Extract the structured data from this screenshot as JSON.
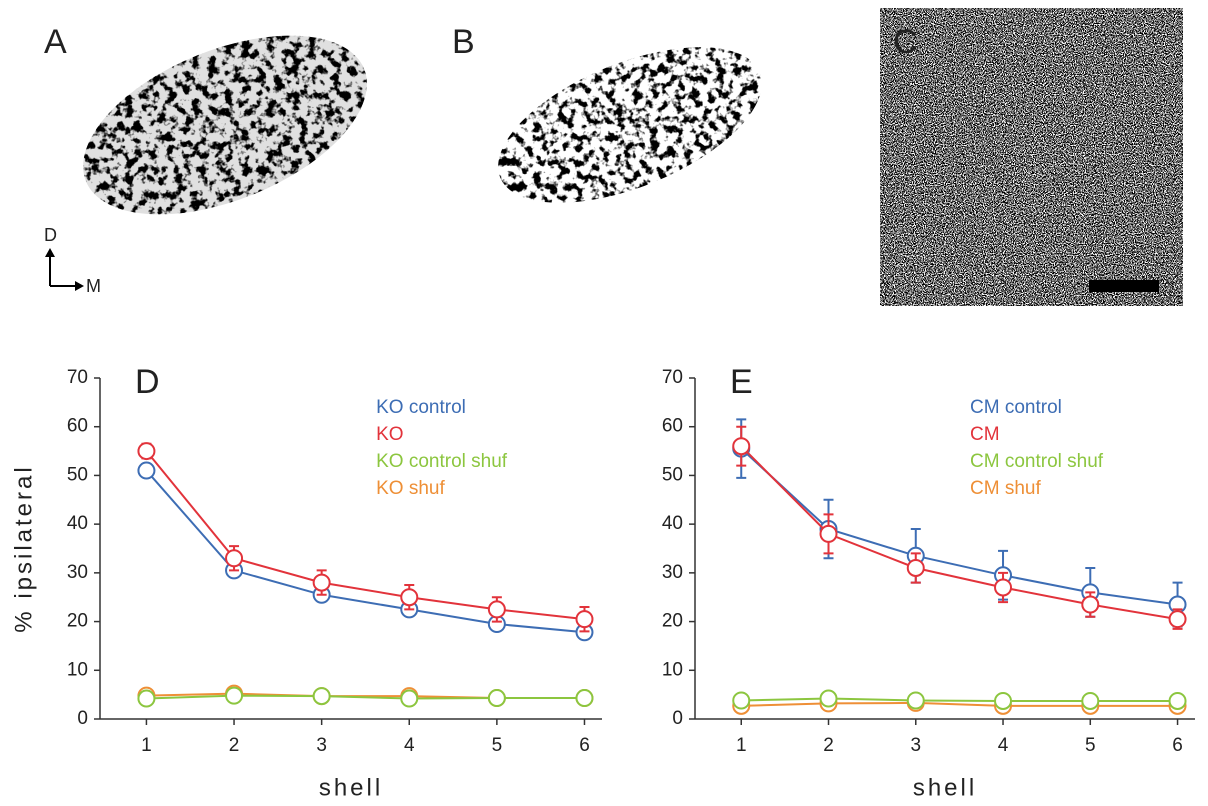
{
  "image_panels": [
    {
      "label": "A"
    },
    {
      "label": "B"
    },
    {
      "label": "C"
    }
  ],
  "orientation": {
    "dorsal": "D",
    "medial": "M"
  },
  "chart_data": [
    {
      "type": "line",
      "title": "D",
      "x_label": "shell",
      "y_label": "% ipsilateral",
      "x": [
        1,
        2,
        3,
        4,
        5,
        6
      ],
      "xlim": [
        0.47,
        6.2
      ],
      "xticks": [
        1,
        2,
        3,
        4,
        5,
        6
      ],
      "ylim": [
        0,
        70
      ],
      "yticks": [
        0,
        10,
        20,
        30,
        40,
        50,
        60,
        70
      ],
      "legend": "upper right",
      "series": [
        {
          "name": "KO control",
          "color": "#3d6db4",
          "values": [
            51,
            30.5,
            25.5,
            22.5,
            19.5,
            17.8
          ],
          "errors": [
            1,
            1,
            1,
            1,
            1,
            1
          ]
        },
        {
          "name": "KO",
          "color": "#e2333b",
          "values": [
            55,
            33,
            28,
            25,
            22.5,
            20.5
          ],
          "errors": [
            1.5,
            2.5,
            2.5,
            2.5,
            2.5,
            2.5
          ]
        },
        {
          "name": "KO control shuf",
          "color": "#8cc63f",
          "values": [
            4.2,
            4.8,
            4.7,
            4.2,
            4.3,
            4.3
          ],
          "errors": [
            0.3,
            0.3,
            0.3,
            0.3,
            0.3,
            0.3
          ]
        },
        {
          "name": "KO shuf",
          "color": "#ee8f36",
          "values": [
            4.8,
            5.2,
            4.7,
            4.7,
            4.3,
            4.3
          ],
          "errors": [
            0.3,
            0.3,
            0.3,
            0.3,
            0.3,
            0.3
          ]
        }
      ]
    },
    {
      "type": "line",
      "title": "E",
      "x_label": "shell",
      "x": [
        1,
        2,
        3,
        4,
        5,
        6
      ],
      "xlim": [
        0.47,
        6.2
      ],
      "xticks": [
        1,
        2,
        3,
        4,
        5,
        6
      ],
      "ylim": [
        0,
        70
      ],
      "yticks": [
        0,
        10,
        20,
        30,
        40,
        50,
        60,
        70
      ],
      "legend": "upper right",
      "series": [
        {
          "name": "CM control",
          "color": "#3d6db4",
          "values": [
            55.5,
            39,
            33.5,
            29.5,
            26,
            23.5
          ],
          "errors": [
            6,
            6,
            5.5,
            5,
            5,
            4.5
          ]
        },
        {
          "name": "CM",
          "color": "#e2333b",
          "values": [
            56,
            38,
            31,
            27,
            23.5,
            20.5
          ],
          "errors": [
            4,
            4,
            3,
            3,
            2.5,
            2
          ]
        },
        {
          "name": "CM control shuf",
          "color": "#8cc63f",
          "values": [
            3.8,
            4.2,
            3.8,
            3.7,
            3.7,
            3.7
          ],
          "errors": [
            0.3,
            0.3,
            0.3,
            0.3,
            0.3,
            0.3
          ]
        },
        {
          "name": "CM shuf",
          "color": "#ee8f36",
          "values": [
            2.7,
            3.2,
            3.3,
            2.7,
            2.7,
            2.7
          ],
          "errors": [
            0.3,
            0.3,
            0.3,
            0.3,
            0.3,
            0.3
          ]
        }
      ]
    }
  ]
}
